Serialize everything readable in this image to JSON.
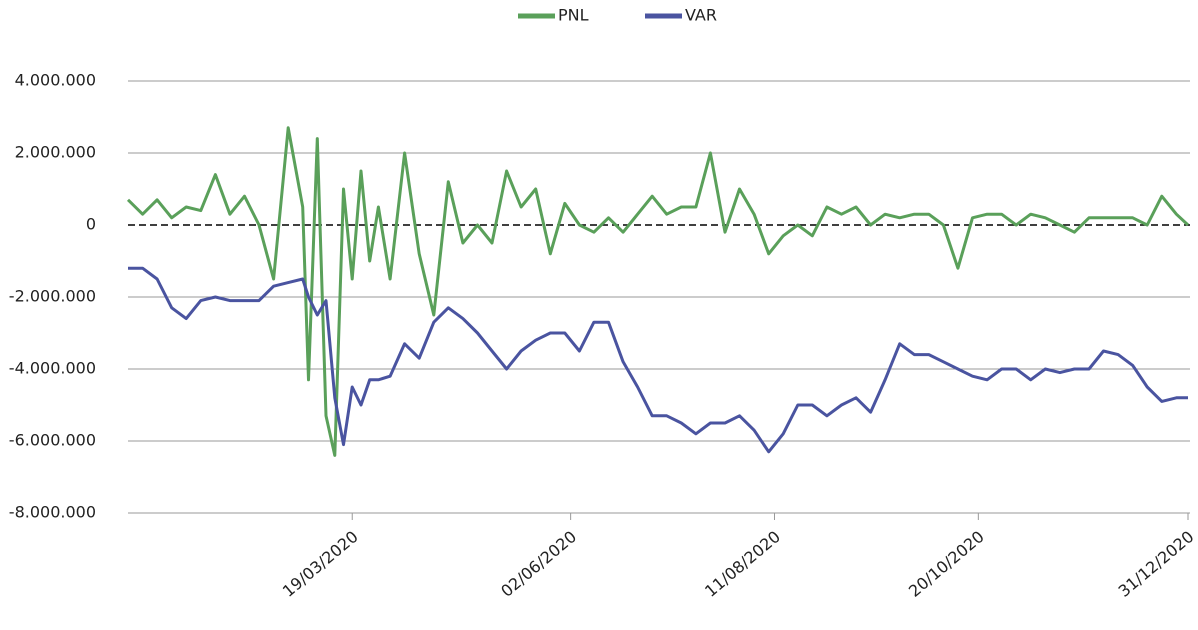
{
  "chart_data": {
    "type": "line",
    "x": [
      "02/01/2020",
      "07/01/2020",
      "12/01/2020",
      "17/01/2020",
      "22/01/2020",
      "27/01/2020",
      "01/02/2020",
      "06/02/2020",
      "11/02/2020",
      "16/02/2020",
      "21/02/2020",
      "26/02/2020",
      "02/03/2020",
      "04/03/2020",
      "07/03/2020",
      "10/03/2020",
      "13/03/2020",
      "16/03/2020",
      "19/03/2020",
      "22/03/2020",
      "25/03/2020",
      "28/03/2020",
      "01/04/2020",
      "06/04/2020",
      "11/04/2020",
      "16/04/2020",
      "21/04/2020",
      "26/04/2020",
      "01/05/2020",
      "06/05/2020",
      "11/05/2020",
      "16/05/2020",
      "21/05/2020",
      "26/05/2020",
      "31/05/2020",
      "05/06/2020",
      "10/06/2020",
      "15/06/2020",
      "20/06/2020",
      "25/06/2020",
      "30/06/2020",
      "05/07/2020",
      "10/07/2020",
      "15/07/2020",
      "20/07/2020",
      "25/07/2020",
      "30/07/2020",
      "04/08/2020",
      "09/08/2020",
      "14/08/2020",
      "19/08/2020",
      "24/08/2020",
      "29/08/2020",
      "03/09/2020",
      "08/09/2020",
      "13/09/2020",
      "18/09/2020",
      "23/09/2020",
      "28/09/2020",
      "03/10/2020",
      "08/10/2020",
      "13/10/2020",
      "18/10/2020",
      "23/10/2020",
      "28/10/2020",
      "02/11/2020",
      "07/11/2020",
      "12/11/2020",
      "17/11/2020",
      "22/11/2020",
      "27/11/2020",
      "02/12/2020",
      "07/12/2020",
      "12/12/2020",
      "17/12/2020",
      "22/12/2020",
      "27/12/2020",
      "31/12/2020"
    ],
    "series": [
      {
        "name": "PNL",
        "color": "#5aa05a",
        "values": [
          700000,
          300000,
          700000,
          200000,
          500000,
          400000,
          1400000,
          300000,
          800000,
          0,
          -1500000,
          2700000,
          500000,
          -4300000,
          2400000,
          -5300000,
          -6400000,
          1000000,
          -1500000,
          1500000,
          -1000000,
          500000,
          -1500000,
          2000000,
          -800000,
          -2500000,
          1200000,
          -500000,
          0,
          -500000,
          1500000,
          500000,
          1000000,
          -800000,
          600000,
          0,
          -200000,
          200000,
          -200000,
          300000,
          800000,
          300000,
          500000,
          500000,
          2000000,
          -200000,
          1000000,
          300000,
          -800000,
          -300000,
          0,
          -300000,
          500000,
          300000,
          500000,
          0,
          300000,
          200000,
          300000,
          300000,
          0,
          -1200000,
          200000,
          300000,
          300000,
          0,
          300000,
          200000,
          0,
          -200000,
          200000,
          200000,
          200000,
          200000,
          0,
          800000,
          300000,
          0
        ]
      },
      {
        "name": "VAR",
        "color": "#4a54a0",
        "values": [
          -1200000,
          -1200000,
          -1500000,
          -2300000,
          -2600000,
          -2100000,
          -2000000,
          -2100000,
          -2100000,
          -2100000,
          -1700000,
          -1600000,
          -1500000,
          -2000000,
          -2500000,
          -2100000,
          -4800000,
          -6100000,
          -4500000,
          -5000000,
          -4300000,
          -4300000,
          -4200000,
          -3300000,
          -3700000,
          -2700000,
          -2300000,
          -2600000,
          -3000000,
          -3500000,
          -4000000,
          -3500000,
          -3200000,
          -3000000,
          -3000000,
          -3500000,
          -2700000,
          -2700000,
          -3800000,
          -4500000,
          -5300000,
          -5300000,
          -5500000,
          -5800000,
          -5500000,
          -5500000,
          -5300000,
          -5700000,
          -6300000,
          -5800000,
          -5000000,
          -5000000,
          -5300000,
          -5000000,
          -4800000,
          -5200000,
          -4300000,
          -3300000,
          -3600000,
          -3600000,
          -3800000,
          -4000000,
          -4200000,
          -4300000,
          -4000000,
          -4000000,
          -4300000,
          -4000000,
          -4100000,
          -4000000,
          -4000000,
          -3500000,
          -3600000,
          -3900000,
          -4500000,
          -4900000,
          -4800000,
          -4800000
        ]
      }
    ],
    "xlim": [
      "02/01/2020",
      "31/12/2020"
    ],
    "xticks": [
      "19/03/2020",
      "02/06/2020",
      "11/08/2020",
      "20/10/2020",
      "31/12/2020"
    ],
    "ylim": [
      -8000000,
      4000000
    ],
    "yticks": [
      {
        "value": 4000000,
        "label": "4.000.000"
      },
      {
        "value": 2000000,
        "label": "2.000.000"
      },
      0,
      {
        "value": -2000000,
        "label": "-2.000.000"
      },
      {
        "value": -4000000,
        "label": "-4.000.000"
      },
      {
        "value": -6000000,
        "label": "-6.000.000"
      },
      {
        "value": -8000000,
        "label": "-8.000.000"
      }
    ],
    "grid": true,
    "legend": "top"
  }
}
